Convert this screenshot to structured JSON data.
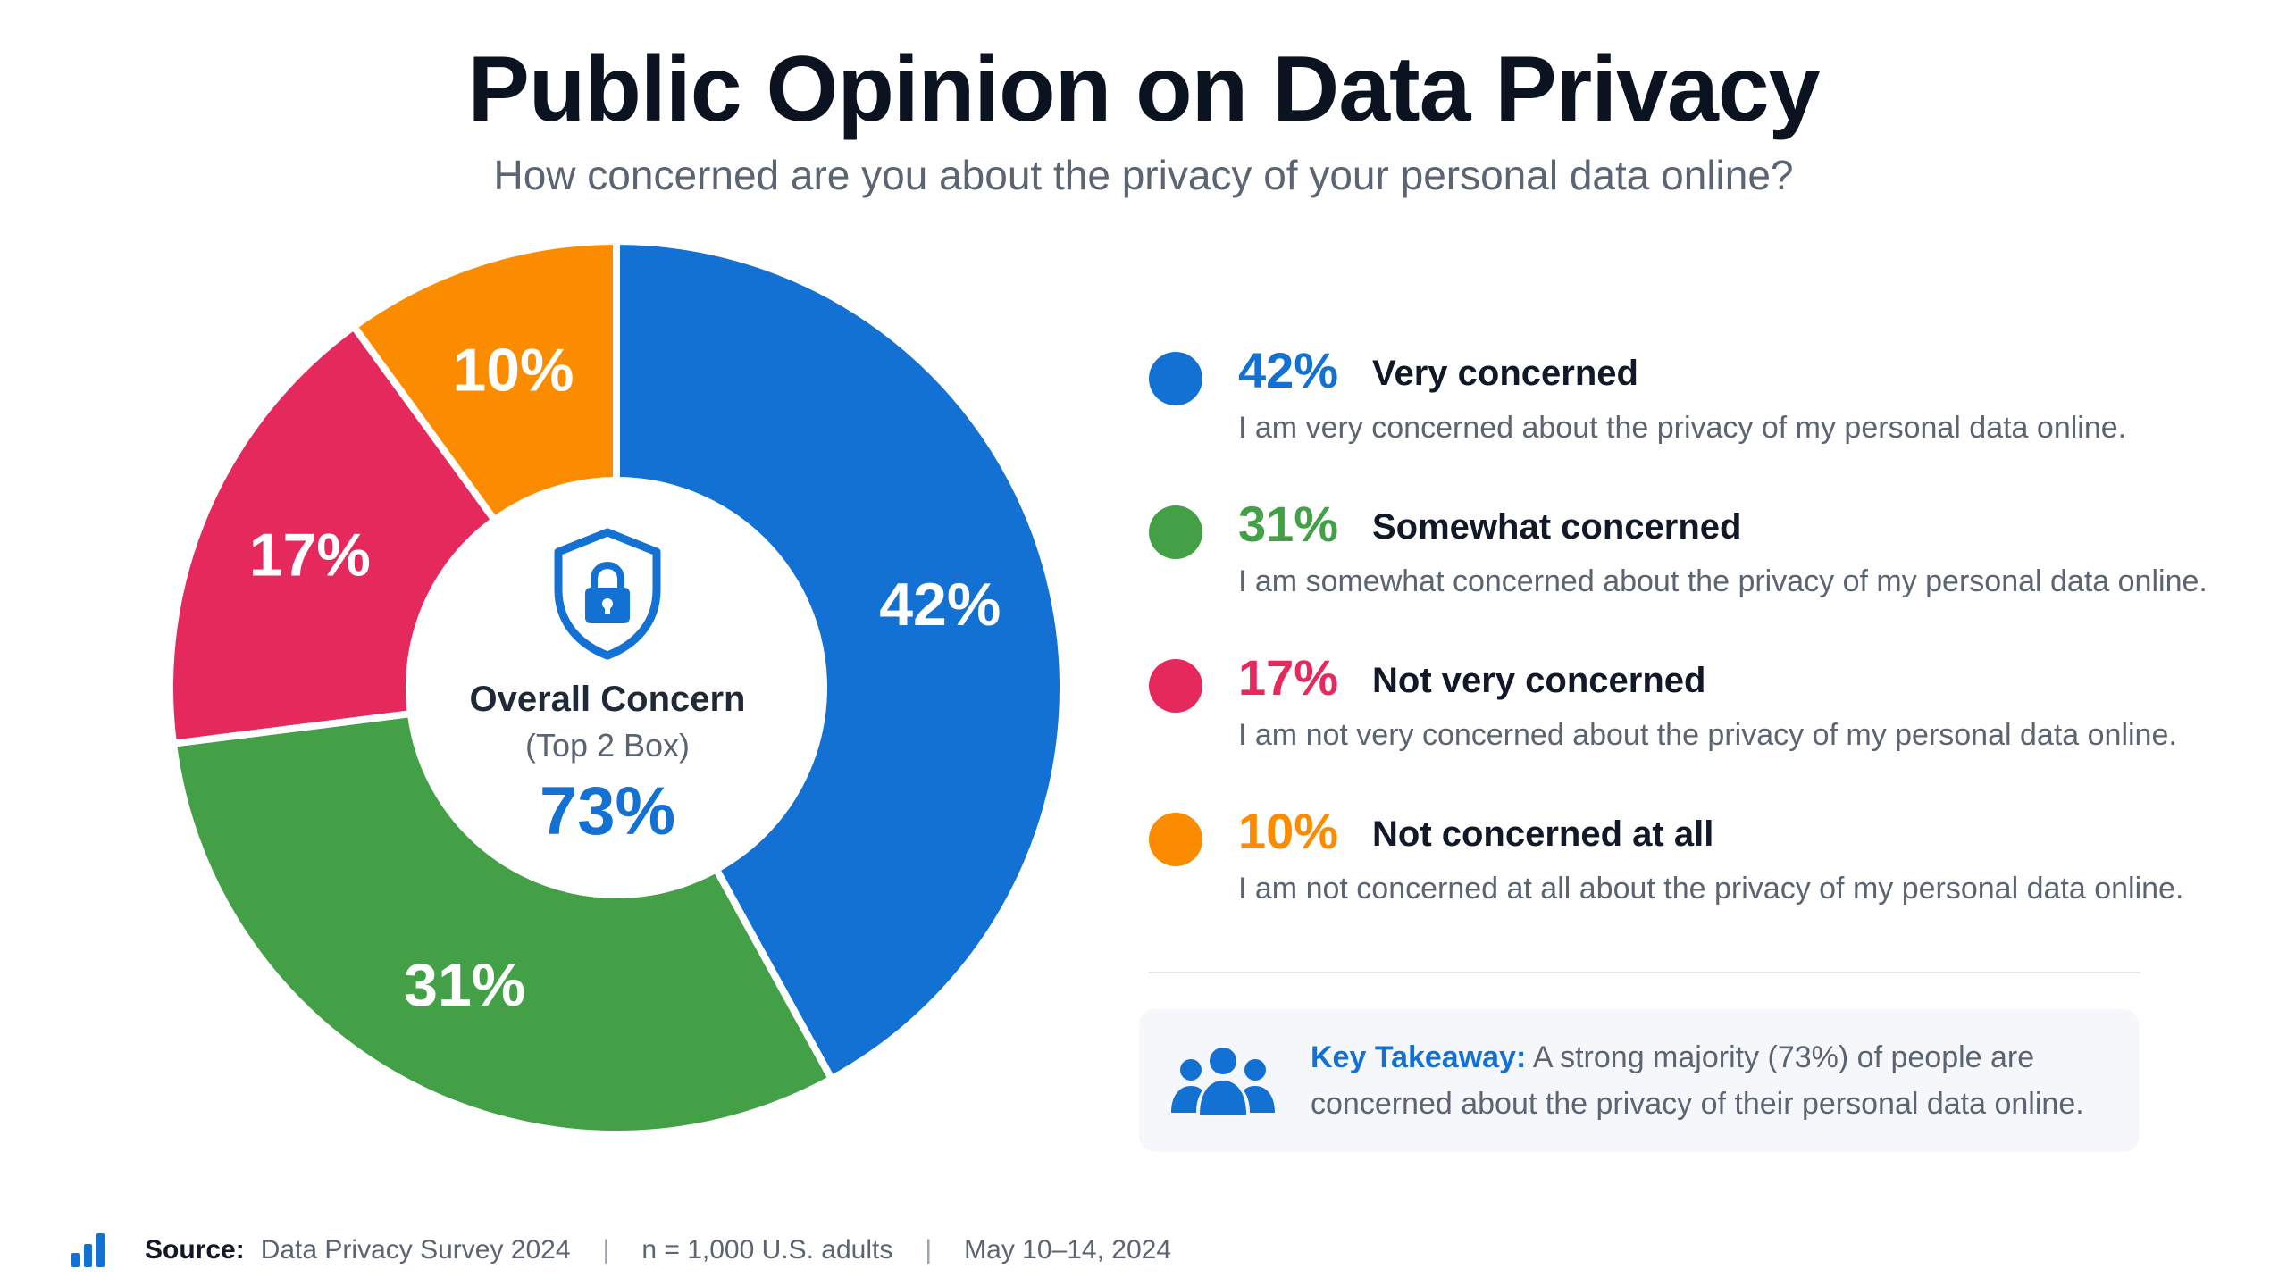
{
  "header": {
    "title": "Public Opinion on Data Privacy",
    "subtitle": "How concerned are you about the privacy of your personal data online?"
  },
  "center": {
    "icon": "shield-lock-icon",
    "title": "Overall Concern",
    "subtitle": "(Top 2 Box)",
    "value": "73%"
  },
  "chart_data": {
    "type": "pie",
    "title": "Public Opinion on Data Privacy",
    "subtitle": "How concerned are you about the privacy of your personal data online?",
    "donut": true,
    "categories": [
      "Very concerned",
      "Somewhat concerned",
      "Not very concerned",
      "Not concerned at all"
    ],
    "values": [
      42,
      31,
      17,
      10
    ],
    "labels": [
      "42%",
      "31%",
      "17%",
      "10%"
    ],
    "colors": [
      "#1471d4",
      "#43a047",
      "#e6295d",
      "#fb8c00"
    ],
    "legend_placement": "right"
  },
  "legend": {
    "items": [
      {
        "pct": "42%",
        "label": "Very concerned",
        "desc": "I am very concerned about the privacy of my personal data online.",
        "color": "#1471d4"
      },
      {
        "pct": "31%",
        "label": "Somewhat concerned",
        "desc": "I am somewhat concerned about the privacy of my personal data online.",
        "color": "#43a047"
      },
      {
        "pct": "17%",
        "label": "Not very concerned",
        "desc": "I am not very concerned about the privacy of my personal data online.",
        "color": "#e6295d"
      },
      {
        "pct": "10%",
        "label": "Not concerned at all",
        "desc": "I am not concerned at all about the privacy of my personal data online.",
        "color": "#fb8c00"
      }
    ]
  },
  "takeaway": {
    "icon": "people-icon",
    "lead": "Key Takeaway:",
    "text": " A strong majority (73%) of people are concerned about the privacy of their personal data online."
  },
  "footer": {
    "icon": "bar-chart-icon",
    "source_label": "Source:",
    "source": "Data Privacy Survey 2024",
    "sample": "n = 1,000 U.S. adults",
    "date": "May 10–14, 2024",
    "separator": "|"
  }
}
